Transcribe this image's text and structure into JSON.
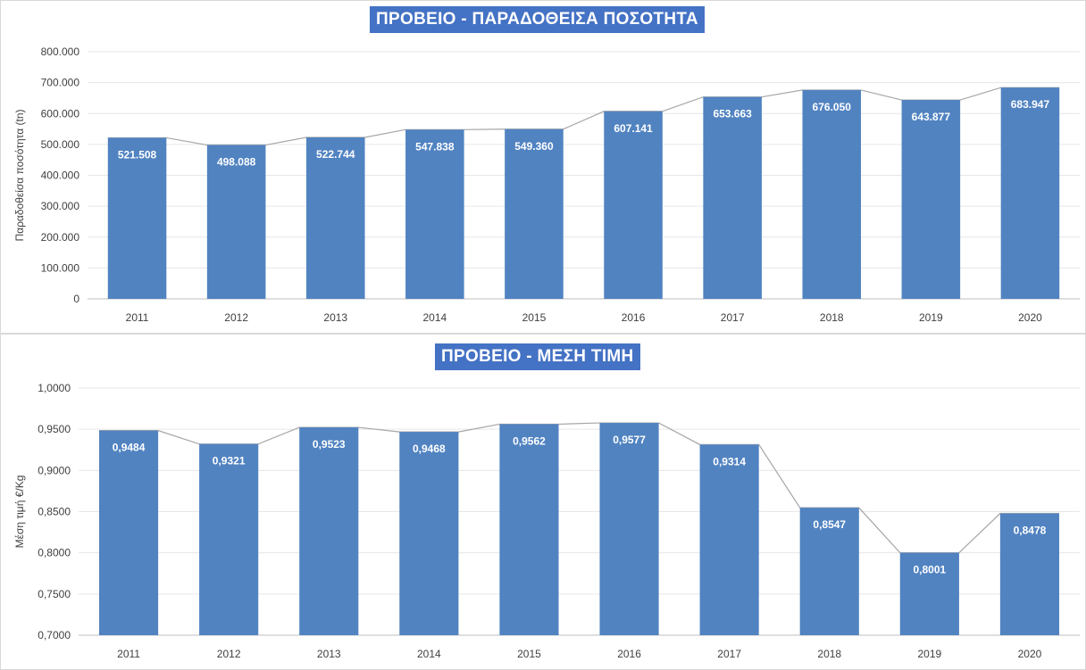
{
  "chart_data": [
    {
      "type": "bar",
      "title": "ΠΡΟΒΕΙΟ - ΠΑΡΑΔΟΘΕΙΣΑ ΠΟΣΟΤΗΤΑ",
      "xlabel": "",
      "ylabel": "Παραδοθείσα ποσότητα (tn)",
      "categories": [
        "2011",
        "2012",
        "2013",
        "2014",
        "2015",
        "2016",
        "2017",
        "2018",
        "2019",
        "2020"
      ],
      "values": [
        521508,
        498088,
        522744,
        547838,
        549360,
        607141,
        653663,
        676050,
        643877,
        683947
      ],
      "value_labels": [
        "521.508",
        "498.088",
        "522.744",
        "547.838",
        "549.360",
        "607.141",
        "653.663",
        "676.050",
        "643.877",
        "683.947"
      ],
      "ylim": [
        0,
        800000
      ],
      "yticks": [
        "0",
        "100.000",
        "200.000",
        "300.000",
        "400.000",
        "500.000",
        "600.000",
        "700.000",
        "800.000"
      ],
      "grid": true,
      "connector_line": true,
      "bar_color": "#5183c1",
      "line_color": "#a6a6a6"
    },
    {
      "type": "bar",
      "title": "ΠΡΟΒΕΙΟ - ΜΕΣΗ ΤΙΜΗ",
      "xlabel": "",
      "ylabel": "Μέση τιμή €/Kg",
      "categories": [
        "2011",
        "2012",
        "2013",
        "2014",
        "2015",
        "2016",
        "2017",
        "2018",
        "2019",
        "2020"
      ],
      "values": [
        0.9484,
        0.9321,
        0.9523,
        0.9468,
        0.9562,
        0.9577,
        0.9314,
        0.8547,
        0.8001,
        0.8478
      ],
      "value_labels": [
        "0,9484",
        "0,9321",
        "0,9523",
        "0,9468",
        "0,9562",
        "0,9577",
        "0,9314",
        "0,8547",
        "0,8001",
        "0,8478"
      ],
      "ylim": [
        0.7,
        1.0
      ],
      "yticks": [
        "0,7000",
        "0,7500",
        "0,8000",
        "0,8500",
        "0,9000",
        "0,9500",
        "1,0000"
      ],
      "grid": true,
      "connector_line": true,
      "bar_color": "#5183c1",
      "line_color": "#a6a6a6"
    }
  ]
}
